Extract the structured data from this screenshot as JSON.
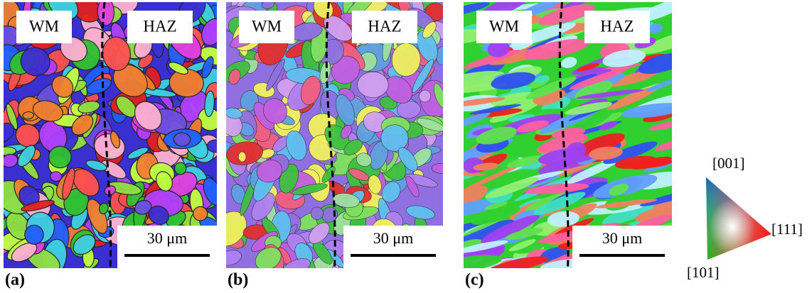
{
  "panels": [
    {
      "label": "(a)",
      "left_region": "WM",
      "right_region": "HAZ",
      "scale_bar": "30 μm"
    },
    {
      "label": "(b)",
      "left_region": "WM",
      "right_region": "HAZ",
      "scale_bar": "30 μm"
    },
    {
      "label": "(c)",
      "left_region": "WM",
      "right_region": "HAZ",
      "scale_bar": "30 μm"
    }
  ],
  "legend": {
    "top": "[001]",
    "right": "[111]",
    "bottom": "[101]"
  }
}
